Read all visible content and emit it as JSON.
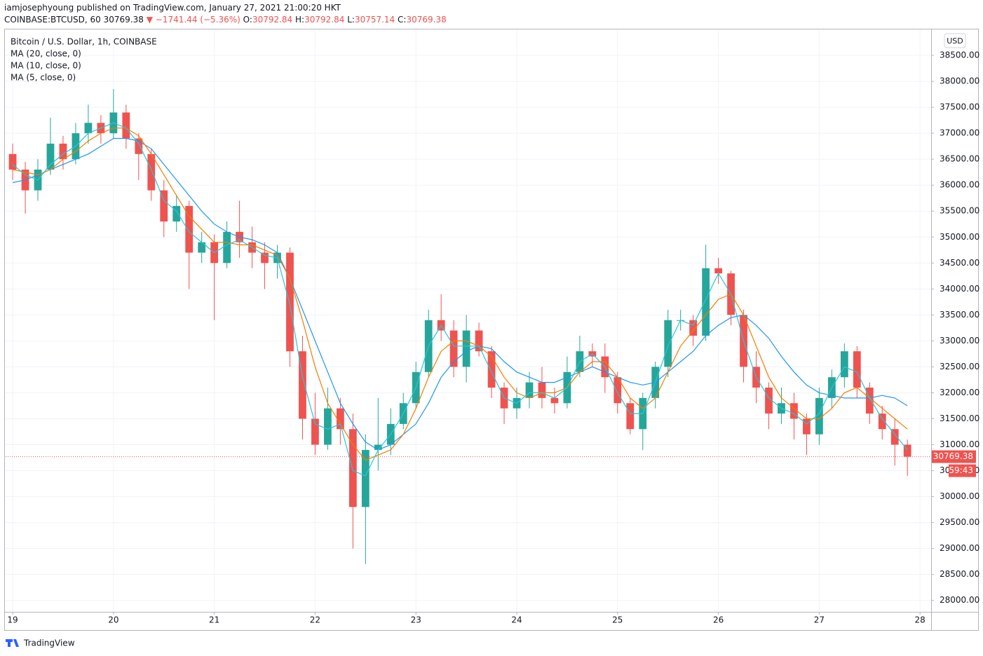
{
  "header": {
    "published": "iamjosephyoung published on TradingView.com, January 27, 2021 21:00:20 HKT",
    "symbol": "COINBASE:BTCUSD, 60",
    "price": "30769.38",
    "arrow": "▼",
    "change": "−1741.44 (−5.36%)",
    "o_label": "O:",
    "o": "30792.84",
    "h_label": "H:",
    "h": "30792.84",
    "l_label": "L:",
    "l": "30757.14",
    "c_label": "C:",
    "c": "30769.38"
  },
  "footer": {
    "brand": "TradingView"
  },
  "chart_data": {
    "type": "candlestick",
    "title": "Bitcoin / U.S. Dollar, 1h, COINBASE",
    "currency": "USD",
    "countdown": "59:43",
    "up_color": "#26a69a",
    "down_color": "#ef5350",
    "grid": true,
    "xlim": [
      18.93,
      28.11
    ],
    "xticks": [
      19,
      20,
      21,
      22,
      23,
      24,
      25,
      26,
      27,
      28
    ],
    "ylim": [
      27780,
      39000
    ],
    "yticks": [
      {
        "value": 28000,
        "label": "28000.00"
      },
      {
        "value": 28500,
        "label": "28500.00"
      },
      {
        "value": 29000,
        "label": "29000.00"
      },
      {
        "value": 29500,
        "label": "29500.00"
      },
      {
        "value": 30000,
        "label": "30000.00"
      },
      {
        "value": 30500,
        "label": "30500.00"
      },
      {
        "value": 31000,
        "label": "31000.00"
      },
      {
        "value": 31500,
        "label": "31500.00"
      },
      {
        "value": 32000,
        "label": "32000.00"
      },
      {
        "value": 32500,
        "label": "32500.00"
      },
      {
        "value": 33000,
        "label": "33000.00"
      },
      {
        "value": 33500,
        "label": "33500.00"
      },
      {
        "value": 34000,
        "label": "34000.00"
      },
      {
        "value": 34500,
        "label": "34500.00"
      },
      {
        "value": 35000,
        "label": "35000.00"
      },
      {
        "value": 35500,
        "label": "35500.00"
      },
      {
        "value": 36000,
        "label": "36000.00"
      },
      {
        "value": 36500,
        "label": "36500.00"
      },
      {
        "value": 37000,
        "label": "37000.00"
      },
      {
        "value": 37500,
        "label": "37500.00"
      },
      {
        "value": 38000,
        "label": "38000.00"
      },
      {
        "value": 38500,
        "label": "38500.00"
      }
    ],
    "x": [
      19,
      19.125,
      19.25,
      19.375,
      19.5,
      19.625,
      19.75,
      19.875,
      20,
      20.125,
      20.25,
      20.375,
      20.5,
      20.625,
      20.75,
      20.875,
      21,
      21.125,
      21.25,
      21.375,
      21.5,
      21.625,
      21.75,
      21.875,
      22,
      22.125,
      22.25,
      22.375,
      22.5,
      22.625,
      22.75,
      22.875,
      23,
      23.125,
      23.25,
      23.375,
      23.5,
      23.625,
      23.75,
      23.875,
      24,
      24.125,
      24.25,
      24.375,
      24.5,
      24.625,
      24.75,
      24.875,
      25,
      25.125,
      25.25,
      25.375,
      25.5,
      25.625,
      25.75,
      25.875,
      26,
      26.125,
      26.25,
      26.375,
      26.5,
      26.625,
      26.75,
      26.875,
      27,
      27.125,
      27.25,
      27.375,
      27.5,
      27.625,
      27.75,
      27.875
    ],
    "open": [
      36600,
      36300,
      35900,
      36300,
      36800,
      36500,
      37000,
      37200,
      37000,
      37400,
      36900,
      36600,
      35900,
      35300,
      35600,
      34700,
      34900,
      34500,
      35100,
      34900,
      34700,
      34500,
      34700,
      32800,
      31500,
      31000,
      31700,
      31300,
      29800,
      30900,
      31000,
      31400,
      31800,
      32400,
      33400,
      33200,
      32500,
      33200,
      32800,
      32100,
      31700,
      31900,
      32200,
      31900,
      31800,
      32400,
      32800,
      32700,
      32300,
      31800,
      31300,
      31900,
      32500,
      33400,
      33400,
      33100,
      34400,
      34300,
      33500,
      32500,
      32100,
      31600,
      31800,
      31500,
      31200,
      31900,
      32300,
      32800,
      32100,
      31600,
      31300,
      31000
    ],
    "high": [
      36800,
      36450,
      36500,
      37300,
      36950,
      37200,
      37550,
      37350,
      37850,
      37550,
      37000,
      36700,
      36100,
      35800,
      35700,
      35100,
      35050,
      35300,
      35700,
      35200,
      34900,
      34850,
      34800,
      33100,
      32000,
      32100,
      31900,
      31600,
      31200,
      31900,
      31700,
      32000,
      32600,
      33600,
      33900,
      33400,
      33500,
      33350,
      32900,
      32200,
      32100,
      32400,
      32500,
      32100,
      32700,
      33100,
      32950,
      32950,
      32400,
      31900,
      32000,
      32600,
      33600,
      33600,
      33500,
      34850,
      34600,
      34350,
      33600,
      32800,
      32200,
      32100,
      32000,
      31600,
      32100,
      32450,
      32950,
      32900,
      32200,
      31750,
      31500,
      31100
    ],
    "low": [
      36100,
      35450,
      35700,
      36200,
      36300,
      36400,
      36800,
      36800,
      36900,
      36700,
      36100,
      35700,
      35000,
      35100,
      34000,
      34500,
      33400,
      34400,
      34600,
      34400,
      34000,
      34200,
      32500,
      31100,
      30800,
      30900,
      31000,
      29000,
      28700,
      30500,
      30800,
      31300,
      31700,
      32300,
      33000,
      32300,
      32200,
      32700,
      31900,
      31400,
      31500,
      31700,
      31700,
      31600,
      31700,
      32300,
      32500,
      32000,
      31600,
      31200,
      30900,
      31700,
      32300,
      33200,
      32900,
      33000,
      34100,
      33300,
      32200,
      31800,
      31300,
      31400,
      31100,
      30800,
      31000,
      31700,
      32100,
      31900,
      31400,
      31100,
      30600,
      30400
    ],
    "close": [
      36300,
      35900,
      36300,
      36800,
      36500,
      37000,
      37200,
      37000,
      37400,
      36900,
      36600,
      35900,
      35300,
      35600,
      34700,
      34900,
      34500,
      35100,
      34900,
      34700,
      34500,
      34700,
      32800,
      31500,
      31000,
      31700,
      31300,
      29800,
      30900,
      31000,
      31400,
      31800,
      32400,
      33400,
      33200,
      32500,
      33200,
      32800,
      32100,
      31700,
      31900,
      32200,
      31900,
      31800,
      32400,
      32800,
      32700,
      32300,
      31800,
      31300,
      31900,
      32500,
      33400,
      33400,
      33100,
      34400,
      34300,
      33500,
      32500,
      32100,
      31600,
      31800,
      31500,
      31200,
      31900,
      32300,
      32800,
      32100,
      31600,
      31300,
      31000,
      30769.38
    ],
    "series": [
      {
        "name": "MA (20, close, 0)",
        "color": "#2196f3",
        "values": [
          36050,
          36100,
          36200,
          36300,
          36400,
          36500,
          36600,
          36750,
          36900,
          36900,
          36850,
          36700,
          36400,
          36100,
          35800,
          35500,
          35250,
          35100,
          35000,
          34950,
          34850,
          34700,
          34200,
          33600,
          33000,
          32400,
          31800,
          31400,
          31050,
          30900,
          31000,
          31200,
          31400,
          31800,
          32300,
          32600,
          32800,
          32900,
          32850,
          32600,
          32400,
          32300,
          32200,
          32200,
          32300,
          32400,
          32500,
          32400,
          32300,
          32200,
          32150,
          32200,
          32400,
          32600,
          32800,
          33100,
          33300,
          33450,
          33500,
          33300,
          33050,
          32700,
          32400,
          32150,
          32000,
          31950,
          31900,
          31900,
          31900,
          31950,
          31900,
          31750
        ]
      },
      {
        "name": "MA (10, close, 0)",
        "color": "#f57c00",
        "values": [
          36300,
          36250,
          36200,
          36300,
          36500,
          36650,
          36850,
          37000,
          37100,
          37100,
          36950,
          36600,
          36200,
          35800,
          35400,
          35150,
          34900,
          34900,
          34850,
          34850,
          34750,
          34650,
          34200,
          33400,
          32500,
          31800,
          31400,
          31000,
          30700,
          30800,
          30900,
          31200,
          31700,
          32300,
          32800,
          33000,
          33000,
          32900,
          32700,
          32300,
          32000,
          31900,
          32000,
          32000,
          32100,
          32400,
          32600,
          32600,
          32300,
          31900,
          31700,
          31900,
          32400,
          32900,
          33200,
          33500,
          33800,
          33900,
          33500,
          32900,
          32300,
          31900,
          31700,
          31500,
          31500,
          31700,
          32000,
          32100,
          31900,
          31700,
          31500,
          31300
        ]
      },
      {
        "name": "MA (5, close, 0)",
        "color": "#26c6da",
        "values": [
          36400,
          36200,
          36100,
          36400,
          36600,
          36750,
          37000,
          37100,
          37200,
          37100,
          36800,
          36300,
          35700,
          35500,
          35100,
          34900,
          34700,
          34850,
          34950,
          34800,
          34650,
          34600,
          33700,
          32300,
          31400,
          31300,
          31400,
          30500,
          30400,
          30900,
          31200,
          31600,
          32100,
          32900,
          33300,
          32900,
          32900,
          32900,
          32400,
          31900,
          31800,
          32000,
          32000,
          31900,
          32100,
          32600,
          32750,
          32500,
          32000,
          31600,
          31600,
          32200,
          32900,
          33400,
          33300,
          33800,
          34300,
          33900,
          33000,
          32300,
          31900,
          31700,
          31600,
          31400,
          31600,
          32100,
          32500,
          32400,
          31900,
          31500,
          31200,
          30900
        ]
      }
    ]
  }
}
